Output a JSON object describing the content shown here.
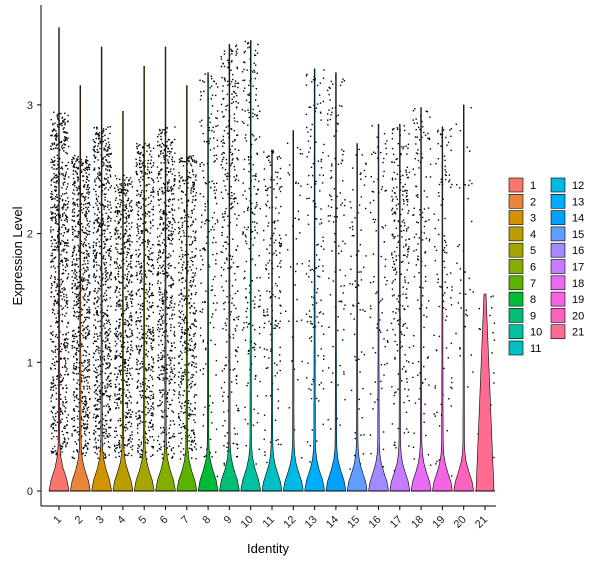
{
  "chart_data": {
    "type": "violin",
    "xlabel": "Identity",
    "ylabel": "Expression Level",
    "ylim": [
      -0.12,
      3.75
    ],
    "yticks": [
      0,
      1,
      2,
      3
    ],
    "categories": [
      "1",
      "2",
      "3",
      "4",
      "5",
      "6",
      "7",
      "8",
      "9",
      "10",
      "11",
      "12",
      "13",
      "14",
      "15",
      "16",
      "17",
      "18",
      "19",
      "20",
      "21"
    ],
    "colors": [
      "#F8766D",
      "#E8853A",
      "#D39200",
      "#BB9D00",
      "#A3A500",
      "#85AD00",
      "#5BB300",
      "#00BA38",
      "#00BF74",
      "#00C19F",
      "#00BFC4",
      "#00B8E5",
      "#00ADFA",
      "#00A0FF",
      "#619CFF",
      "#A58AFF",
      "#C77CFF",
      "#E76BF3",
      "#F564E3",
      "#FF62BC",
      "#FF6C91"
    ],
    "max_values": [
      3.6,
      3.15,
      3.45,
      2.95,
      3.3,
      3.45,
      3.15,
      3.25,
      3.47,
      3.5,
      2.65,
      2.8,
      3.28,
      3.25,
      2.7,
      2.85,
      2.85,
      2.98,
      2.83,
      3.0,
      1.53
    ],
    "zero_mode": [
      0.0,
      0.0,
      0.0,
      0.0,
      0.0,
      0.0,
      0.0,
      0.0,
      0.0,
      0.0,
      0.0,
      0.0,
      0.0,
      0.0,
      0.0,
      0.0,
      0.0,
      0.0,
      0.0,
      0.0,
      0.0
    ],
    "point_density": [
      1.0,
      1.0,
      1.0,
      0.85,
      0.8,
      0.8,
      0.7,
      0.25,
      0.45,
      0.3,
      0.25,
      0.05,
      0.2,
      0.15,
      0.1,
      0.12,
      0.35,
      0.18,
      0.15,
      0.05,
      0.03
    ],
    "legend_columns": 2,
    "legend_position": "right",
    "grid": false
  }
}
